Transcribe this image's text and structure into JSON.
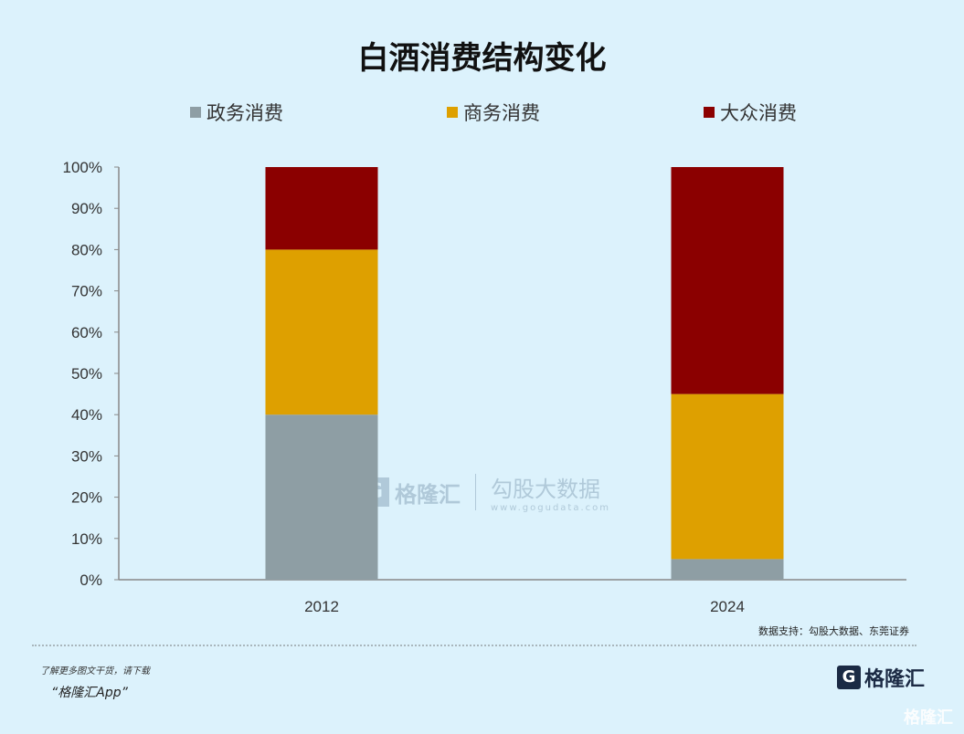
{
  "chart_data": {
    "type": "bar",
    "stacked": true,
    "title": "白酒消费结构变化",
    "categories": [
      "2012",
      "2024"
    ],
    "series": [
      {
        "name": "政务消费",
        "color": "#8e9ea4",
        "values": [
          40,
          5
        ]
      },
      {
        "name": "商务消费",
        "color": "#dea000",
        "values": [
          40,
          40
        ]
      },
      {
        "name": "大众消费",
        "color": "#8b0000",
        "values": [
          20,
          55
        ]
      }
    ],
    "ylim": [
      0,
      100
    ],
    "yticks": [
      "0%",
      "10%",
      "20%",
      "30%",
      "40%",
      "50%",
      "60%",
      "70%",
      "80%",
      "90%",
      "100%"
    ],
    "grid": false,
    "legend": "top",
    "source": "数据支持：勾股大数据、东莞证券"
  },
  "watermark": {
    "brand": "格隆汇",
    "partner": "勾股大数据",
    "partner_url": "www.gogudata.com"
  },
  "footer": {
    "promo_line1": "了解更多图文干货，请下载",
    "promo_line2": "“格隆汇App”",
    "logo": "格隆汇",
    "corner_mark": "格隆汇"
  }
}
